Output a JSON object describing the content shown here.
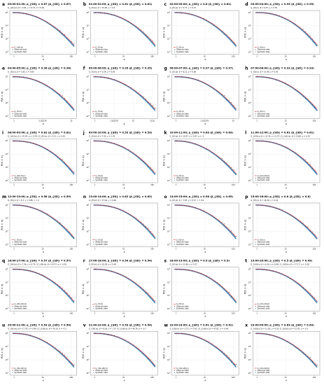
{
  "chart_data": [
    {
      "letter": "a",
      "title": "00:00-01:00;",
      "rho": "ρ_{SD} = 0.67 (ρ̂_{SD} = 0.67)",
      "params": "G_{LN}(x): β = 2.81, γ = 0.72, σ = 0.49",
      "model": "G_{LN}(x)",
      "xticks": [
        "1",
        "10",
        "100"
      ],
      "type": "line"
    },
    {
      "letter": "b",
      "title": "01:00-02:00;",
      "rho": "ρ_{SD} = 0.81 (ρ̂_{SD} = 0.81)",
      "params": "G_{E}(x): β = 15.26, γ = 0.5",
      "model": "G_{E}(x)",
      "xticks": [
        "1",
        "10",
        "100"
      ],
      "type": "line"
    },
    {
      "letter": "c",
      "title": "02:00-03:00;",
      "rho": "ρ_{SD} = 0.8 (ρ̂_{SD} = 0.81)",
      "params": "G_{E}(x): β = 5.77, γ = 0.72",
      "model": "G_{E}(x)",
      "xticks": [
        "1",
        "10",
        "100"
      ],
      "type": "line"
    },
    {
      "letter": "d",
      "title": "03:00-04:00;",
      "rho": "ρ_{SD} = 0.95 (ρ̂_{SD} = 0.95)",
      "params": "G_{E}(x): β = 6.57, γ = 0.78",
      "model": "G_{E}(x)",
      "xticks": [
        "1",
        "10",
        "100"
      ],
      "type": "line"
    },
    {
      "letter": "e",
      "title": "04:00-05:00;",
      "rho": "ρ_{SD} = 0.96 (ρ̂_{SD} = 0.96)",
      "params": "G_{E}(x): β = 5.92, γ = 0.85",
      "model": "G_{E}(x)",
      "xticks": [
        "1",
        "3.162278",
        "10"
      ],
      "type": "line"
    },
    {
      "letter": "f",
      "title": "05:00-06:00;",
      "rho": "ρ_{SD} = 0.95 (ρ̂_{SD} = 0.95)",
      "params": "G_{E}(x): β = 5.54, γ = 0.85",
      "model": "G_{E}(x)",
      "xticks": [
        "1",
        "3.162278",
        "10",
        "31.62"
      ],
      "type": "line"
    },
    {
      "letter": "g",
      "title": "06:00-07:00;",
      "rho": "ρ_{SD} = 0.97 (ρ̂_{SD} = 0.97)",
      "params": "G_{E}(x): β = 8.21, γ = 0.88",
      "model": "G_{E}(x)",
      "xticks": [
        "1",
        "3.162278",
        "10"
      ],
      "type": "line"
    },
    {
      "letter": "h",
      "title": "07:00-08:00;",
      "rho": "ρ_{SD} = 0.93 (ρ̂_{SD} = 0.93)",
      "params": "G_{E}(x): β = 21.48, γ = 0.91",
      "model": "G_{E}(x)",
      "xticks": [
        "1",
        "10",
        "100"
      ],
      "type": "line"
    },
    {
      "letter": "i",
      "title": "08:00-09:00;",
      "rho": "ρ_{SD} = 0.82 (ρ̂_{SD} = 0.81)",
      "params": "G_{LN}(x): β = 35.44, α = -0.78 | G_{E}(x): β = 3.11, γ = 0.43",
      "model": "G_{LN→E}(x)",
      "xticks": [
        "1",
        "10",
        "100"
      ],
      "type": "line"
    },
    {
      "letter": "j",
      "title": "09:00-10:00;",
      "rho": "ρ_{SD} = 0.53 (ρ̂_{SD} = 0.53)",
      "params": "G_{E}(x): β = 7.05, γ = 1.42",
      "model": "G_{E}(x)",
      "xticks": [
        "1",
        "10",
        "100"
      ],
      "type": "line"
    },
    {
      "letter": "k",
      "title": "10:00-11:00;",
      "rho": "ρ_{SD} = 0.63 (ρ̂_{SD} = 0.63)",
      "params": "G_{E}(x): β = 10.57, γ = 0.97, α = -3",
      "model": "G_{E}(x)",
      "xticks": [
        "1",
        "10",
        "100"
      ],
      "type": "line"
    },
    {
      "letter": "l",
      "title": "11:00-12:00;",
      "rho": "ρ_{SD} = 0.61 (ρ̂_{SD} = 0.61)",
      "params": "G_{LN}(x): β = 31.35, γ = 0.57 | G_{LN}(x): β = 23.68, γ = 0.39",
      "model": "G_{LN→LN}(x)",
      "xticks": [
        "1",
        "10",
        "100"
      ],
      "type": "line"
    },
    {
      "letter": "m",
      "title": "12:00-13:00;",
      "rho": "ρ_{SD} = 0.58 (ρ̂_{SD} = 0.59)",
      "params": "G_{E}(x): β = 6.7, γ = 0.85, τ = 0",
      "model": "G_{E}(x)",
      "xticks": [
        "1",
        "10",
        "100"
      ],
      "type": "line"
    },
    {
      "letter": "n",
      "title": "13:00-14:00;",
      "rho": "ρ_{SD} = 0.62 (ρ̂_{SD} = 0.62)",
      "params": "G_{E}(x): β = 17.42, γ = 0.48",
      "model": "G_{E}(x)",
      "xticks": [
        "1",
        "10",
        "100"
      ],
      "type": "line"
    },
    {
      "letter": "o",
      "title": "14:00-15:00;",
      "rho": "ρ_{SD} = 0.56 (ρ̂_{SD} = 0.65)",
      "params": "G_{E}(x): β = 7.87, γ = 0.57, τ = 0.9",
      "model": "G_{E}(x)",
      "xticks": [
        "1",
        "10",
        "100"
      ],
      "type": "line"
    },
    {
      "letter": "p",
      "title": "15:00-16:00;",
      "rho": "ρ_{SD} = 0.6 (ρ̂_{SD} = 0.6)",
      "params": "G_{E}(x): β = 16.18, γ = 0.41",
      "model": "G_{E}(x)",
      "xticks": [
        "1",
        "10",
        "100"
      ],
      "type": "line"
    },
    {
      "letter": "q",
      "title": "16:00-17:00;",
      "rho": "ρ_{SD} = 0.57 (ρ̂_{SD} = 0.57)",
      "params": "G_{LN}(x): β = 7.46, γ = 0.74 | G_{LN}(x): β = 24.72, σ = -0.28",
      "model": "G_{LN→LN}(x)",
      "xticks": [
        "1",
        "10",
        "100"
      ],
      "type": "line"
    },
    {
      "letter": "r",
      "title": "17:00-18:00;",
      "rho": "ρ_{SD} = 0.54 (ρ̂_{SD} = 0.54)",
      "params": "G_{E}(x): β = 16.83, γ = 0.49",
      "model": "G_{E}(x)",
      "xticks": [
        "1",
        "10",
        "100"
      ],
      "type": "line"
    },
    {
      "letter": "s",
      "title": "18:00-19:00;",
      "rho": "ρ_{SD} = 0.5 (ρ̂_{SD} = 0.5)",
      "params": "G_{E}(x): β = 22.66, γ = 0.37",
      "model": "G_{E}(x)",
      "xticks": [
        "1",
        "10",
        "100"
      ],
      "type": "line"
    },
    {
      "letter": "t",
      "title": "19:00-20:00;",
      "rho": "ρ_{SD} = 0.5 (ρ̂_{SD} = 0.49)",
      "params": "G_{LN}(x): β = 6.16, γ = 0.86 | G_{LN}(x): β = 17.17, γ = -0.28",
      "model": "G_{LN→LN}(x)",
      "xticks": [
        "1",
        "10",
        "100"
      ],
      "type": "line"
    },
    {
      "letter": "u",
      "title": "20:00-21:00;",
      "rho": "ρ_{SD} = 0.53 (ρ̂_{SD} = 0.54)",
      "params": "G_{LN}(x): β = 17.78, γ = 0.46 | G_{LN}(x): β = 34.18, σ = -0.3",
      "model": "G_{LN→LN}(x)",
      "xticks": [
        "1",
        "10",
        "100"
      ],
      "type": "line"
    },
    {
      "letter": "v",
      "title": "21:00-22:00;",
      "rho": "ρ_{SD} = 0.53 (ρ̂_{SD} = 0.54)",
      "params": "G_{LN}(x): β = 6.83, γ = 1.07 | G_{LN}(x): β = 46.76, σ = -0.7",
      "model": "G_{LN→LN}(x)",
      "xticks": [
        "1",
        "10",
        "100"
      ],
      "type": "line"
    },
    {
      "letter": "w",
      "title": "22:00-23:00;",
      "rho": "ρ_{SD} = 0.61 (ρ̂_{SD} = 0.61)",
      "params": "G_{LN}(x): β = 3.73, γ = 0.91 | G_{LN}(x): β = 47.82, γ = -0.49",
      "model": "G_{LN→LN}(x)",
      "xticks": [
        "1",
        "10",
        "100"
      ],
      "type": "line"
    },
    {
      "letter": "x",
      "title": "23:00-00:00;",
      "rho": "ρ_{SD} = 0.63 (ρ̂_{SD} = 0.63)",
      "params": "G_{LN}(x): β = 11.83, γ = 0.8 | G_{LN}(x): β = 21.76, γ = -0.2",
      "model": "G_{LN→LN}(x)",
      "xticks": [
        "1",
        "10",
        "100"
      ],
      "type": "line"
    }
  ],
  "axes": {
    "ylabel": "P(X > x)",
    "xlabel": "x",
    "yticks": [
      "10^0",
      "10^-1",
      "10^-2",
      "10^-3"
    ],
    "log_x": true,
    "log_y": true
  },
  "legend": {
    "observed": "Observed data",
    "synthetic": "Synthetic data",
    "placement": "bottom-left"
  },
  "colors": {
    "model_line": "#d62728",
    "observed": "#111111",
    "synthetic": "#1f77b4",
    "grid": "#e8e8e8"
  }
}
